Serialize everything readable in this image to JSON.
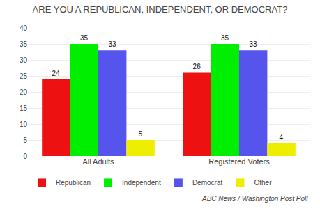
{
  "chart_data": {
    "type": "bar",
    "title": "ARE YOU A REPUBLICAN, INDEPENDENT, OR DEMOCRAT?",
    "categories": [
      "All Adults",
      "Registered Voters"
    ],
    "series": [
      {
        "name": "Republican",
        "color": "#EE1111",
        "values": [
          24,
          26
        ]
      },
      {
        "name": "Independent",
        "color": "#00EE00",
        "values": [
          35,
          35
        ]
      },
      {
        "name": "Democrat",
        "color": "#5555EE",
        "values": [
          33,
          33
        ]
      },
      {
        "name": "Other",
        "color": "#EEEE00",
        "values": [
          5,
          4
        ]
      }
    ],
    "ylim": [
      0,
      40
    ],
    "yticks": [
      0,
      5,
      10,
      15,
      20,
      25,
      30,
      35,
      40
    ],
    "grid": true,
    "legend": "bottom",
    "data_labels": true,
    "annotations": [
      {
        "text": "ABC News / Washington Post Poll"
      }
    ]
  }
}
